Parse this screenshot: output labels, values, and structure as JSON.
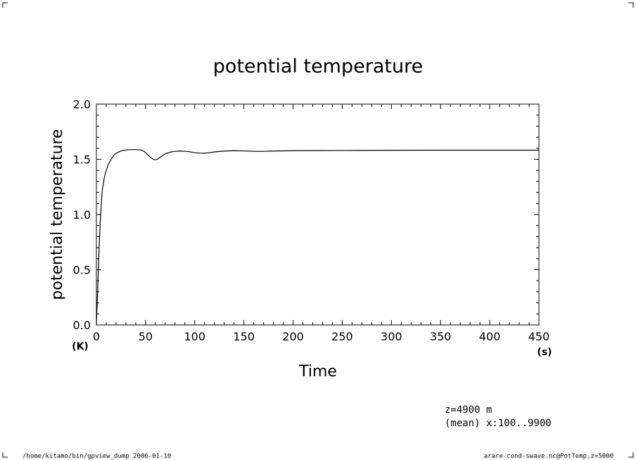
{
  "chart_data": {
    "type": "line",
    "title": "potential temperature",
    "xlabel": "Time",
    "ylabel": "potential temperature",
    "x_unit": "(s)",
    "y_unit": "(K)",
    "xlim": [
      0,
      450
    ],
    "ylim": [
      0.0,
      2.0
    ],
    "x_ticks": [
      "0",
      "50",
      "100",
      "150",
      "200",
      "250",
      "300",
      "350",
      "400",
      "450"
    ],
    "y_ticks": [
      "0.0",
      "0.5",
      "1.0",
      "1.5",
      "2.0"
    ],
    "grid": false,
    "series": [
      {
        "x": [
          0,
          1,
          2,
          3,
          4,
          5,
          6,
          8,
          10,
          12,
          15,
          18,
          20,
          25,
          30,
          35,
          40,
          45,
          48,
          50,
          53,
          56,
          58,
          60,
          62,
          65,
          70,
          75,
          80,
          85,
          90,
          95,
          100,
          105,
          110,
          115,
          120,
          130,
          140,
          150,
          160,
          170,
          180,
          200,
          220,
          250,
          300,
          350,
          400,
          450
        ],
        "y": [
          0.0,
          0.25,
          0.5,
          0.75,
          0.95,
          1.1,
          1.22,
          1.33,
          1.4,
          1.45,
          1.5,
          1.54,
          1.555,
          1.575,
          1.585,
          1.588,
          1.588,
          1.585,
          1.575,
          1.56,
          1.535,
          1.51,
          1.5,
          1.495,
          1.5,
          1.52,
          1.55,
          1.565,
          1.572,
          1.575,
          1.573,
          1.568,
          1.56,
          1.556,
          1.555,
          1.56,
          1.567,
          1.575,
          1.578,
          1.576,
          1.572,
          1.572,
          1.575,
          1.578,
          1.579,
          1.58,
          1.582,
          1.583,
          1.583,
          1.583
        ]
      }
    ],
    "annotations": [
      "z=4900  m",
      "(mean) x:100..9900"
    ]
  },
  "footer": {
    "left": "/home/kitamo/bin/gpview_dump  2006-01-10",
    "right": "arare-cond-swave.nc@PotTemp,z=5000"
  }
}
